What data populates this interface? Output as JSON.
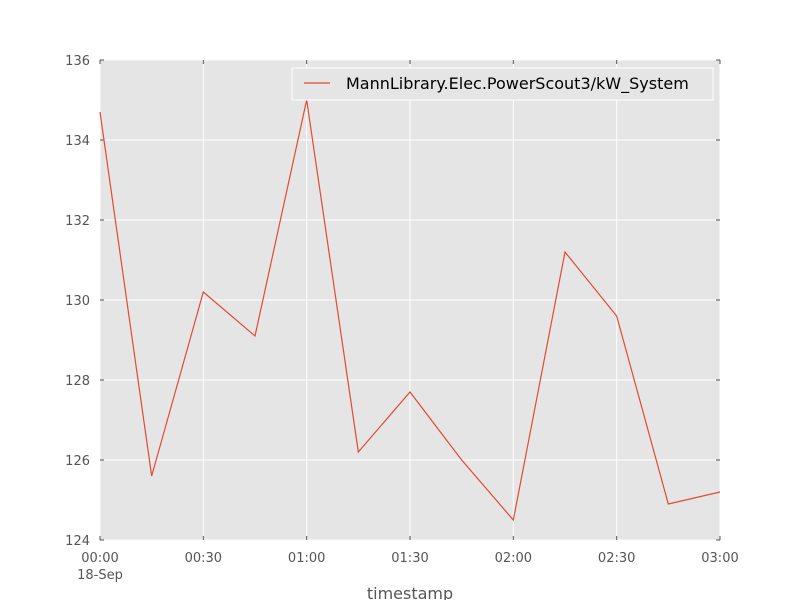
{
  "chart_data": {
    "type": "line",
    "xlabel": "timestamp",
    "ylabel": "",
    "x_ticks": [
      "00:00",
      "00:30",
      "01:00",
      "01:30",
      "02:00",
      "02:30",
      "03:00"
    ],
    "x_date_label": "18-Sep",
    "x_range": [
      "00:00",
      "03:00"
    ],
    "ylim": [
      124,
      136
    ],
    "y_ticks": [
      124,
      126,
      128,
      130,
      132,
      134,
      136
    ],
    "grid": true,
    "legend_position": "top-right",
    "series": [
      {
        "name": "MannLibrary.Elec.PowerScout3/kW_System",
        "color": "#e24a33",
        "x": [
          "00:00",
          "00:15",
          "00:30",
          "00:45",
          "01:00",
          "01:15",
          "01:30",
          "01:45",
          "02:00",
          "02:15",
          "02:30",
          "02:45",
          "03:00"
        ],
        "values": [
          134.7,
          125.6,
          130.2,
          129.1,
          135.0,
          126.2,
          127.7,
          126.0,
          124.5,
          131.2,
          129.6,
          124.9,
          125.2
        ]
      }
    ]
  }
}
